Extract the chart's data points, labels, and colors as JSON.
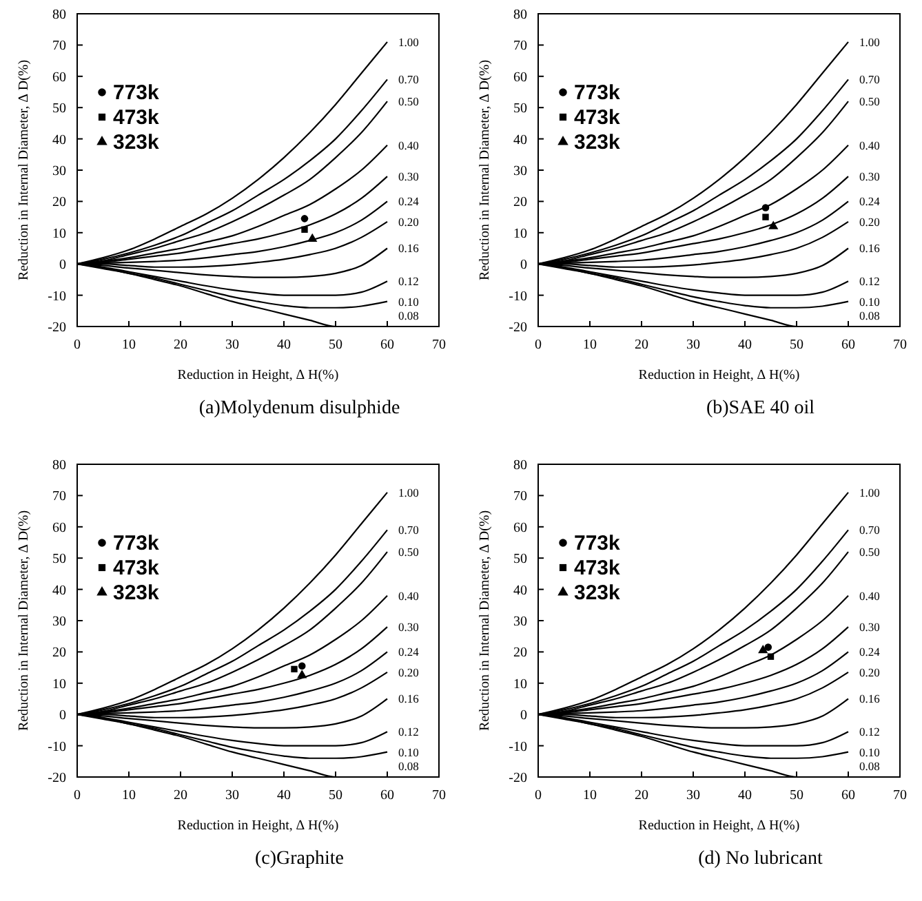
{
  "chart_data": [
    {
      "type": "line",
      "title": "(a)Molydenum disulphide",
      "xlabel": "Reduction in Height, ∆ H(%)",
      "ylabel": "Reduction in Internal Diameter, ∆ D(%)",
      "xlim": [
        0,
        70
      ],
      "ylim": [
        -20,
        80
      ],
      "xticks": [
        0,
        10,
        20,
        30,
        40,
        50,
        60,
        70
      ],
      "yticks": [
        -20,
        -10,
        0,
        10,
        20,
        30,
        40,
        50,
        60,
        70,
        80
      ],
      "grid": false,
      "legend": "top left",
      "x": [
        0,
        5,
        10,
        15,
        20,
        25,
        30,
        35,
        40,
        45,
        50,
        55,
        60
      ],
      "series": [
        {
          "name": "1.00",
          "color": "#000000",
          "values": [
            0,
            2,
            4.5,
            8,
            12,
            16,
            21,
            27,
            34,
            42,
            51,
            61,
            71
          ]
        },
        {
          "name": "0.70",
          "color": "#000000",
          "values": [
            0,
            1.5,
            3.5,
            6,
            9,
            13,
            17,
            22,
            27,
            33,
            40,
            49,
            59
          ]
        },
        {
          "name": "0.50",
          "color": "#000000",
          "values": [
            0,
            1,
            3,
            5,
            7.5,
            10,
            13.5,
            17.5,
            22,
            27,
            34,
            42,
            52
          ]
        },
        {
          "name": "0.40",
          "color": "#000000",
          "values": [
            0,
            0.8,
            2,
            3.5,
            5,
            7,
            9,
            12,
            15.5,
            19,
            24,
            30,
            38
          ]
        },
        {
          "name": "0.30",
          "color": "#000000",
          "values": [
            0,
            0.5,
            1.5,
            2.5,
            3.5,
            5,
            6.5,
            8,
            10,
            12.5,
            16,
            21,
            28
          ]
        },
        {
          "name": "0.24",
          "color": "#000000",
          "values": [
            0,
            0.3,
            0.5,
            0.8,
            1.2,
            2,
            3,
            4,
            5.5,
            7.5,
            10,
            14,
            20
          ]
        },
        {
          "name": "0.20",
          "color": "#000000",
          "values": [
            0,
            0,
            -0.5,
            -1,
            -1,
            -0.8,
            -0.3,
            0.5,
            1.5,
            3,
            5,
            8.5,
            13.5
          ]
        },
        {
          "name": "0.16",
          "color": "#000000",
          "values": [
            0,
            -0.5,
            -1.3,
            -2,
            -2.8,
            -3.5,
            -4,
            -4.3,
            -4.3,
            -4,
            -3,
            -0.5,
            5
          ]
        },
        {
          "name": "0.12",
          "color": "#000000",
          "values": [
            0,
            -1,
            -2.5,
            -4,
            -5.5,
            -7,
            -8.3,
            -9.3,
            -10,
            -10,
            -10,
            -9,
            -5.5
          ]
        },
        {
          "name": "0.10",
          "color": "#000000",
          "values": [
            0,
            -1.2,
            -3,
            -4.5,
            -6.5,
            -8.5,
            -10.5,
            -12,
            -13.3,
            -14,
            -14,
            -13.5,
            -12
          ]
        },
        {
          "name": "0.08",
          "color": "#000000",
          "values": [
            0,
            -1.5,
            -3,
            -5,
            -7,
            -9.5,
            -12,
            -14,
            -16,
            -18,
            -20,
            -20,
            -20
          ]
        },
        {
          "name": "773k",
          "type": "scatter",
          "marker": "circle",
          "color": "#000000",
          "x": [
            44
          ],
          "values": [
            14.5
          ]
        },
        {
          "name": "473k",
          "type": "scatter",
          "marker": "square",
          "color": "#000000",
          "x": [
            44
          ],
          "values": [
            11
          ]
        },
        {
          "name": "323k",
          "type": "scatter",
          "marker": "triangle",
          "color": "#000000",
          "x": [
            45.5
          ],
          "values": [
            8
          ]
        }
      ]
    },
    {
      "type": "line",
      "title": "(b)SAE 40 oil",
      "xlabel": "Reduction in Height, ∆ H(%)",
      "ylabel": "Reduction in Internal Diameter, ∆ D(%)",
      "xlim": [
        0,
        70
      ],
      "ylim": [
        -20,
        80
      ],
      "xticks": [
        0,
        10,
        20,
        30,
        40,
        50,
        60,
        70
      ],
      "yticks": [
        -20,
        -10,
        0,
        10,
        20,
        30,
        40,
        50,
        60,
        70,
        80
      ],
      "grid": false,
      "legend": "top left",
      "x": [
        0,
        5,
        10,
        15,
        20,
        25,
        30,
        35,
        40,
        45,
        50,
        55,
        60
      ],
      "series": [
        {
          "name": "1.00",
          "color": "#000000",
          "values": [
            0,
            2,
            4.5,
            8,
            12,
            16,
            21,
            27,
            34,
            42,
            51,
            61,
            71
          ]
        },
        {
          "name": "0.70",
          "color": "#000000",
          "values": [
            0,
            1.5,
            3.5,
            6,
            9,
            13,
            17,
            22,
            27,
            33,
            40,
            49,
            59
          ]
        },
        {
          "name": "0.50",
          "color": "#000000",
          "values": [
            0,
            1,
            3,
            5,
            7.5,
            10,
            13.5,
            17.5,
            22,
            27,
            34,
            42,
            52
          ]
        },
        {
          "name": "0.40",
          "color": "#000000",
          "values": [
            0,
            0.8,
            2,
            3.5,
            5,
            7,
            9,
            12,
            15.5,
            19,
            24,
            30,
            38
          ]
        },
        {
          "name": "0.30",
          "color": "#000000",
          "values": [
            0,
            0.5,
            1.5,
            2.5,
            3.5,
            5,
            6.5,
            8,
            10,
            12.5,
            16,
            21,
            28
          ]
        },
        {
          "name": "0.24",
          "color": "#000000",
          "values": [
            0,
            0.3,
            0.5,
            0.8,
            1.2,
            2,
            3,
            4,
            5.5,
            7.5,
            10,
            14,
            20
          ]
        },
        {
          "name": "0.20",
          "color": "#000000",
          "values": [
            0,
            0,
            -0.5,
            -1,
            -1,
            -0.8,
            -0.3,
            0.5,
            1.5,
            3,
            5,
            8.5,
            13.5
          ]
        },
        {
          "name": "0.16",
          "color": "#000000",
          "values": [
            0,
            -0.5,
            -1.3,
            -2,
            -2.8,
            -3.5,
            -4,
            -4.3,
            -4.3,
            -4,
            -3,
            -0.5,
            5
          ]
        },
        {
          "name": "0.12",
          "color": "#000000",
          "values": [
            0,
            -1,
            -2.5,
            -4,
            -5.5,
            -7,
            -8.3,
            -9.3,
            -10,
            -10,
            -10,
            -9,
            -5.5
          ]
        },
        {
          "name": "0.10",
          "color": "#000000",
          "values": [
            0,
            -1.2,
            -3,
            -4.5,
            -6.5,
            -8.5,
            -10.5,
            -12,
            -13.3,
            -14,
            -14,
            -13.5,
            -12
          ]
        },
        {
          "name": "0.08",
          "color": "#000000",
          "values": [
            0,
            -1.5,
            -3,
            -5,
            -7,
            -9.5,
            -12,
            -14,
            -16,
            -18,
            -20,
            -20,
            -20
          ]
        },
        {
          "name": "773k",
          "type": "scatter",
          "marker": "circle",
          "color": "#000000",
          "x": [
            44
          ],
          "values": [
            18
          ]
        },
        {
          "name": "473k",
          "type": "scatter",
          "marker": "square",
          "color": "#000000",
          "x": [
            44
          ],
          "values": [
            15
          ]
        },
        {
          "name": "323k",
          "type": "scatter",
          "marker": "triangle",
          "color": "#000000",
          "x": [
            45.5
          ],
          "values": [
            12
          ]
        }
      ]
    },
    {
      "type": "line",
      "title": "(c)Graphite",
      "xlabel": "Reduction in Height, ∆ H(%)",
      "ylabel": "Reduction in Internal Diameter, ∆ D(%)",
      "xlim": [
        0,
        70
      ],
      "ylim": [
        -20,
        80
      ],
      "xticks": [
        0,
        10,
        20,
        30,
        40,
        50,
        60,
        70
      ],
      "yticks": [
        -20,
        -10,
        0,
        10,
        20,
        30,
        40,
        50,
        60,
        70,
        80
      ],
      "grid": false,
      "legend": "top left",
      "x": [
        0,
        5,
        10,
        15,
        20,
        25,
        30,
        35,
        40,
        45,
        50,
        55,
        60
      ],
      "series": [
        {
          "name": "1.00",
          "color": "#000000",
          "values": [
            0,
            2,
            4.5,
            8,
            12,
            16,
            21,
            27,
            34,
            42,
            51,
            61,
            71
          ]
        },
        {
          "name": "0.70",
          "color": "#000000",
          "values": [
            0,
            1.5,
            3.5,
            6,
            9,
            13,
            17,
            22,
            27,
            33,
            40,
            49,
            59
          ]
        },
        {
          "name": "0.50",
          "color": "#000000",
          "values": [
            0,
            1,
            3,
            5,
            7.5,
            10,
            13.5,
            17.5,
            22,
            27,
            34,
            42,
            52
          ]
        },
        {
          "name": "0.40",
          "color": "#000000",
          "values": [
            0,
            0.8,
            2,
            3.5,
            5,
            7,
            9,
            12,
            15.5,
            19,
            24,
            30,
            38
          ]
        },
        {
          "name": "0.30",
          "color": "#000000",
          "values": [
            0,
            0.5,
            1.5,
            2.5,
            3.5,
            5,
            6.5,
            8,
            10,
            12.5,
            16,
            21,
            28
          ]
        },
        {
          "name": "0.24",
          "color": "#000000",
          "values": [
            0,
            0.3,
            0.5,
            0.8,
            1.2,
            2,
            3,
            4,
            5.5,
            7.5,
            10,
            14,
            20
          ]
        },
        {
          "name": "0.20",
          "color": "#000000",
          "values": [
            0,
            0,
            -0.5,
            -1,
            -1,
            -0.8,
            -0.3,
            0.5,
            1.5,
            3,
            5,
            8.5,
            13.5
          ]
        },
        {
          "name": "0.16",
          "color": "#000000",
          "values": [
            0,
            -0.5,
            -1.3,
            -2,
            -2.8,
            -3.5,
            -4,
            -4.3,
            -4.3,
            -4,
            -3,
            -0.5,
            5
          ]
        },
        {
          "name": "0.12",
          "color": "#000000",
          "values": [
            0,
            -1,
            -2.5,
            -4,
            -5.5,
            -7,
            -8.3,
            -9.3,
            -10,
            -10,
            -10,
            -9,
            -5.5
          ]
        },
        {
          "name": "0.10",
          "color": "#000000",
          "values": [
            0,
            -1.2,
            -3,
            -4.5,
            -6.5,
            -8.5,
            -10.5,
            -12,
            -13.3,
            -14,
            -14,
            -13.5,
            -12
          ]
        },
        {
          "name": "0.08",
          "color": "#000000",
          "values": [
            0,
            -1.5,
            -3,
            -5,
            -7,
            -9.5,
            -12,
            -14,
            -16,
            -18,
            -20,
            -20,
            -20
          ]
        },
        {
          "name": "773k",
          "type": "scatter",
          "marker": "circle",
          "color": "#000000",
          "x": [
            43.5
          ],
          "values": [
            15.5
          ]
        },
        {
          "name": "473k",
          "type": "scatter",
          "marker": "square",
          "color": "#000000",
          "x": [
            42
          ],
          "values": [
            14.5
          ]
        },
        {
          "name": "323k",
          "type": "scatter",
          "marker": "triangle",
          "color": "#000000",
          "x": [
            43.5
          ],
          "values": [
            12.5
          ]
        }
      ]
    },
    {
      "type": "line",
      "title": "(d) No lubricant",
      "xlabel": "Reduction in Height, ∆ H(%)",
      "ylabel": "Reduction in Internal Diameter, ∆ D(%)",
      "xlim": [
        0,
        70
      ],
      "ylim": [
        -20,
        80
      ],
      "xticks": [
        0,
        10,
        20,
        30,
        40,
        50,
        60,
        70
      ],
      "yticks": [
        -20,
        -10,
        0,
        10,
        20,
        30,
        40,
        50,
        60,
        70,
        80
      ],
      "grid": false,
      "legend": "top left",
      "x": [
        0,
        5,
        10,
        15,
        20,
        25,
        30,
        35,
        40,
        45,
        50,
        55,
        60
      ],
      "series": [
        {
          "name": "1.00",
          "color": "#000000",
          "values": [
            0,
            2,
            4.5,
            8,
            12,
            16,
            21,
            27,
            34,
            42,
            51,
            61,
            71
          ]
        },
        {
          "name": "0.70",
          "color": "#000000",
          "values": [
            0,
            1.5,
            3.5,
            6,
            9,
            13,
            17,
            22,
            27,
            33,
            40,
            49,
            59
          ]
        },
        {
          "name": "0.50",
          "color": "#000000",
          "values": [
            0,
            1,
            3,
            5,
            7.5,
            10,
            13.5,
            17.5,
            22,
            27,
            34,
            42,
            52
          ]
        },
        {
          "name": "0.40",
          "color": "#000000",
          "values": [
            0,
            0.8,
            2,
            3.5,
            5,
            7,
            9,
            12,
            15.5,
            19,
            24,
            30,
            38
          ]
        },
        {
          "name": "0.30",
          "color": "#000000",
          "values": [
            0,
            0.5,
            1.5,
            2.5,
            3.5,
            5,
            6.5,
            8,
            10,
            12.5,
            16,
            21,
            28
          ]
        },
        {
          "name": "0.24",
          "color": "#000000",
          "values": [
            0,
            0.3,
            0.5,
            0.8,
            1.2,
            2,
            3,
            4,
            5.5,
            7.5,
            10,
            14,
            20
          ]
        },
        {
          "name": "0.20",
          "color": "#000000",
          "values": [
            0,
            0,
            -0.5,
            -1,
            -1,
            -0.8,
            -0.3,
            0.5,
            1.5,
            3,
            5,
            8.5,
            13.5
          ]
        },
        {
          "name": "0.16",
          "color": "#000000",
          "values": [
            0,
            -0.5,
            -1.3,
            -2,
            -2.8,
            -3.5,
            -4,
            -4.3,
            -4.3,
            -4,
            -3,
            -0.5,
            5
          ]
        },
        {
          "name": "0.12",
          "color": "#000000",
          "values": [
            0,
            -1,
            -2.5,
            -4,
            -5.5,
            -7,
            -8.3,
            -9.3,
            -10,
            -10,
            -10,
            -9,
            -5.5
          ]
        },
        {
          "name": "0.10",
          "color": "#000000",
          "values": [
            0,
            -1.2,
            -3,
            -4.5,
            -6.5,
            -8.5,
            -10.5,
            -12,
            -13.3,
            -14,
            -14,
            -13.5,
            -12
          ]
        },
        {
          "name": "0.08",
          "color": "#000000",
          "values": [
            0,
            -1.5,
            -3,
            -5,
            -7,
            -9.5,
            -12,
            -14,
            -16,
            -18,
            -20,
            -20,
            -20
          ]
        },
        {
          "name": "773k",
          "type": "scatter",
          "marker": "circle",
          "color": "#000000",
          "x": [
            44.5
          ],
          "values": [
            21.5
          ]
        },
        {
          "name": "473k",
          "type": "scatter",
          "marker": "square",
          "color": "#000000",
          "x": [
            45
          ],
          "values": [
            18.5
          ]
        },
        {
          "name": "323k",
          "type": "scatter",
          "marker": "triangle",
          "color": "#000000",
          "x": [
            43.5
          ],
          "values": [
            20.5
          ]
        }
      ]
    }
  ]
}
